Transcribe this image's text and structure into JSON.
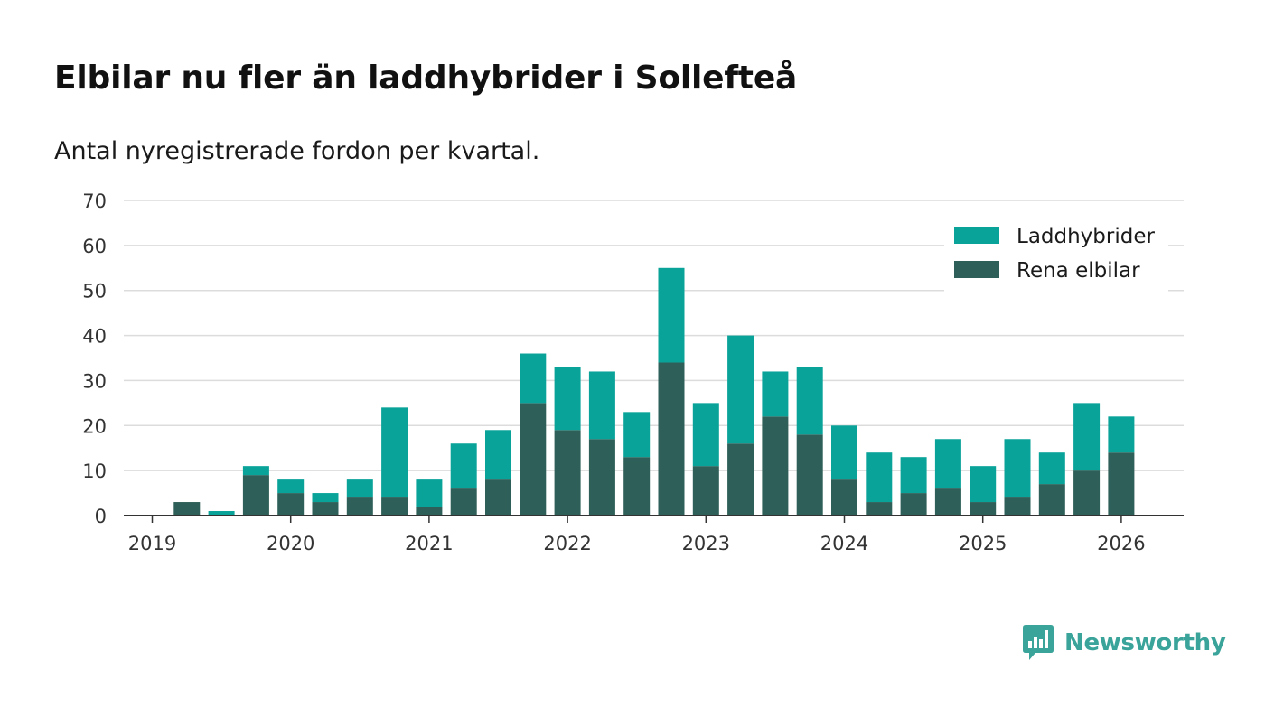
{
  "header": {
    "title": "Elbilar nu fler än laddhybrider i Sollefteå",
    "subtitle": "Antal nyregistrerade fordon per kvartal."
  },
  "brand": {
    "name": "Newsworthy",
    "icon": "newsworthy-logo-icon"
  },
  "colors": {
    "laddhybrider": "#0aa39a",
    "rena_elbilar": "#2e5f58",
    "grid": "#dcdcdc",
    "axis": "#333333"
  },
  "chart_data": {
    "type": "bar",
    "stacked": true,
    "title": "Elbilar nu fler än laddhybrider i Sollefteå",
    "subtitle": "Antal nyregistrerade fordon per kvartal.",
    "xlabel": "",
    "ylabel": "",
    "ylim": [
      0,
      70
    ],
    "yticks": [
      0,
      10,
      20,
      30,
      40,
      50,
      60,
      70
    ],
    "xticks": [
      "2019",
      "2020",
      "2021",
      "2022",
      "2023",
      "2024",
      "2025",
      "2026"
    ],
    "grid": true,
    "legend_position": "top-right",
    "categories": [
      "2019 Q1",
      "2019 Q2",
      "2019 Q3",
      "2019 Q4",
      "2020 Q1",
      "2020 Q2",
      "2020 Q3",
      "2020 Q4",
      "2021 Q1",
      "2021 Q2",
      "2021 Q3",
      "2021 Q4",
      "2022 Q1",
      "2022 Q2",
      "2022 Q3",
      "2022 Q4",
      "2023 Q1",
      "2023 Q2",
      "2023 Q3",
      "2023 Q4",
      "2024 Q1",
      "2024 Q2",
      "2024 Q3",
      "2024 Q4",
      "2025 Q1",
      "2025 Q2",
      "2025 Q3",
      "2025 Q4",
      "2026 Q1"
    ],
    "series": [
      {
        "name": "Rena elbilar",
        "color": "#2e5f58",
        "values": [
          0,
          3,
          0,
          9,
          5,
          3,
          4,
          4,
          2,
          6,
          8,
          25,
          19,
          17,
          13,
          34,
          11,
          16,
          22,
          18,
          8,
          3,
          5,
          6,
          3,
          4,
          7,
          10,
          14
        ]
      },
      {
        "name": "Laddhybrider",
        "color": "#0aa39a",
        "values": [
          0,
          0,
          1,
          2,
          3,
          2,
          4,
          20,
          6,
          10,
          11,
          11,
          14,
          15,
          10,
          21,
          14,
          24,
          10,
          15,
          12,
          11,
          8,
          11,
          8,
          13,
          7,
          15,
          8
        ]
      }
    ],
    "legend": [
      "Laddhybrider",
      "Rena elbilar"
    ]
  }
}
